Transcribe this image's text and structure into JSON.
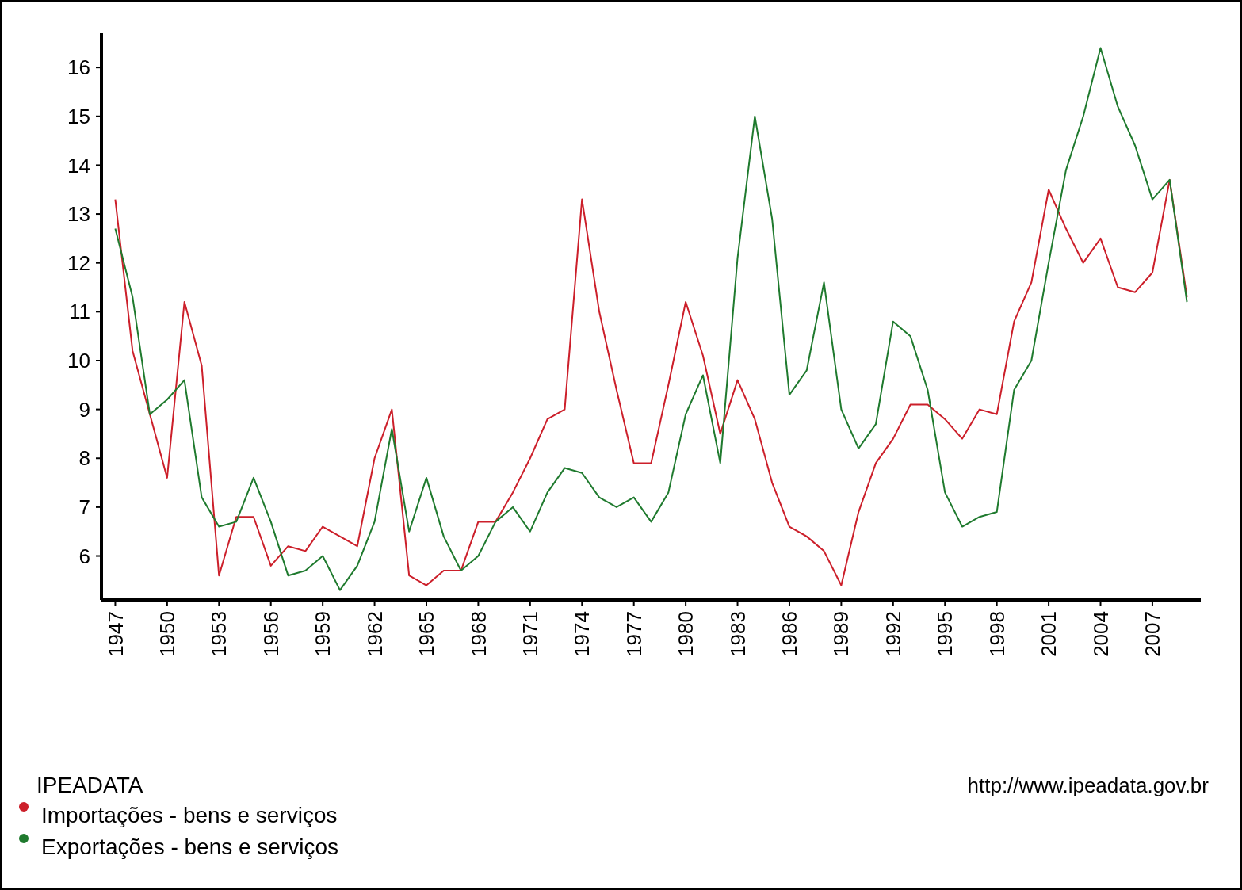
{
  "chart_data": {
    "type": "line",
    "x": [
      1947,
      1948,
      1949,
      1950,
      1951,
      1952,
      1953,
      1954,
      1955,
      1956,
      1957,
      1958,
      1959,
      1960,
      1961,
      1962,
      1963,
      1964,
      1965,
      1966,
      1967,
      1968,
      1969,
      1970,
      1971,
      1972,
      1973,
      1974,
      1975,
      1976,
      1977,
      1978,
      1979,
      1980,
      1981,
      1982,
      1983,
      1984,
      1985,
      1986,
      1987,
      1988,
      1989,
      1990,
      1991,
      1992,
      1993,
      1994,
      1995,
      1996,
      1997,
      1998,
      1999,
      2000,
      2001,
      2002,
      2003,
      2004,
      2005,
      2006,
      2007,
      2008,
      2009
    ],
    "series": [
      {
        "name": "Importações - bens e serviços",
        "color": "#cc1f2a",
        "values": [
          13.3,
          10.2,
          8.9,
          7.6,
          11.2,
          9.9,
          5.6,
          6.8,
          6.8,
          5.8,
          6.2,
          6.1,
          6.6,
          6.4,
          6.2,
          8.0,
          9.0,
          5.6,
          5.4,
          5.7,
          5.7,
          6.7,
          6.7,
          7.3,
          8.0,
          8.8,
          9.0,
          13.3,
          11.0,
          9.4,
          7.9,
          7.9,
          9.5,
          11.2,
          10.1,
          8.5,
          9.6,
          8.8,
          7.5,
          6.6,
          6.4,
          6.1,
          5.4,
          6.9,
          7.9,
          8.4,
          9.1,
          9.1,
          8.8,
          8.4,
          9.0,
          8.9,
          10.8,
          11.6,
          13.5,
          12.7,
          12.0,
          12.5,
          11.5,
          11.4,
          11.8,
          13.7,
          11.3
        ]
      },
      {
        "name": "Exportações - bens e serviços",
        "color": "#1f7a2e",
        "values": [
          12.7,
          11.3,
          8.9,
          9.2,
          9.6,
          7.2,
          6.6,
          6.7,
          7.6,
          6.7,
          5.6,
          5.7,
          6.0,
          5.3,
          5.8,
          6.7,
          8.6,
          6.5,
          7.6,
          6.4,
          5.7,
          6.0,
          6.7,
          7.0,
          6.5,
          7.3,
          7.8,
          7.7,
          7.2,
          7.0,
          7.2,
          6.7,
          7.3,
          8.9,
          9.7,
          7.9,
          12.1,
          15.0,
          12.9,
          9.3,
          9.8,
          11.6,
          9.0,
          8.2,
          8.7,
          10.8,
          10.5,
          9.4,
          7.3,
          6.6,
          6.8,
          6.9,
          9.4,
          10.0,
          12.0,
          13.9,
          15.0,
          16.4,
          15.2,
          14.4,
          13.3,
          13.7,
          11.2
        ]
      }
    ],
    "xlim": [
      1946.2,
      2009.8
    ],
    "xticks": [
      1947,
      1950,
      1953,
      1956,
      1959,
      1962,
      1965,
      1968,
      1971,
      1974,
      1977,
      1980,
      1983,
      1986,
      1989,
      1992,
      1995,
      1998,
      2001,
      2004,
      2007
    ],
    "ylim": [
      5.1,
      16.7
    ],
    "yticks": [
      6,
      7,
      8,
      9,
      10,
      11,
      12,
      13,
      14,
      15,
      16
    ],
    "legend": "bottom left",
    "legend_title": "IPEADATA",
    "annotations": [
      "http://www.ipeadata.gov.br"
    ],
    "grid": false,
    "marker": "none",
    "line_style": "solid"
  }
}
